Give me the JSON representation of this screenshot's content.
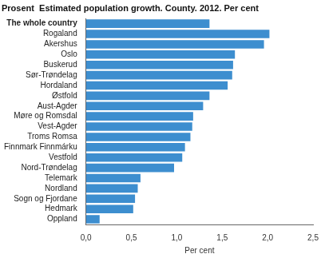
{
  "chart_data": {
    "type": "bar",
    "orientation": "horizontal",
    "title": "Prosent  Estimated population growth. County. 2012. Per cent",
    "x_label": "Per cent",
    "categories": [
      "The whole country",
      "Rogaland",
      "Akershus",
      "Oslo",
      "Buskerud",
      "Sør-Trøndelag",
      "Hordaland",
      "Østfold",
      "Aust-Agder",
      "Møre og Romsdal",
      "Vest-Agder",
      "Troms Romsa",
      "Finnmark Finnmárku",
      "Vestfold",
      "Nord-Trøndelag",
      "Telemark",
      "Nordland",
      "Sogn og Fjordane",
      "Hedmark",
      "Oppland"
    ],
    "values": [
      1.36,
      2.02,
      1.96,
      1.64,
      1.62,
      1.61,
      1.56,
      1.36,
      1.29,
      1.18,
      1.17,
      1.15,
      1.09,
      1.06,
      0.97,
      0.6,
      0.57,
      0.54,
      0.52,
      0.15
    ],
    "color": "#3d8ecf",
    "xlim": [
      0,
      2.5
    ],
    "xticks": [
      {
        "value": 0,
        "label": "0,0"
      },
      {
        "value": 0.5,
        "label": "0,5"
      },
      {
        "value": 1,
        "label": "1,0"
      },
      {
        "value": 1.5,
        "label": "1,5"
      },
      {
        "value": 2,
        "label": "2,0"
      },
      {
        "value": 2.5,
        "label": "2,5"
      }
    ],
    "grid": false
  }
}
